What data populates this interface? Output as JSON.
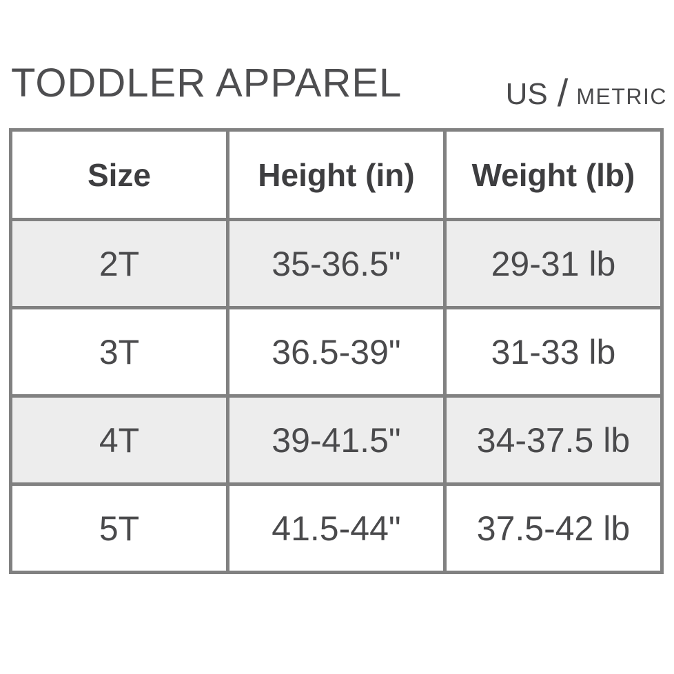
{
  "page": {
    "title": "TODDLER APPAREL"
  },
  "unit_toggle": {
    "us_label": "US",
    "separator": "/",
    "metric_label": "METRIC",
    "selected_unit": "US"
  },
  "colors": {
    "border-color": "#818181",
    "alt-row-bg": "#ededed",
    "text-color": "#4a4a4c",
    "heading-color": "#3e3e40",
    "title-color": "#4e4e50"
  },
  "chart_data": {
    "type": "table",
    "title": "TODDLER APPAREL",
    "headers": [
      "Size",
      "Height (in)",
      "Weight (lb)"
    ],
    "rows": [
      [
        "2T",
        "35-36.5\"",
        "29-31 lb"
      ],
      [
        "3T",
        "36.5-39\"",
        "31-33 lb"
      ],
      [
        "4T",
        "39-41.5\"",
        "34-37.5 lb"
      ],
      [
        "5T",
        "41.5-44\"",
        "37.5-42 lb"
      ]
    ]
  }
}
